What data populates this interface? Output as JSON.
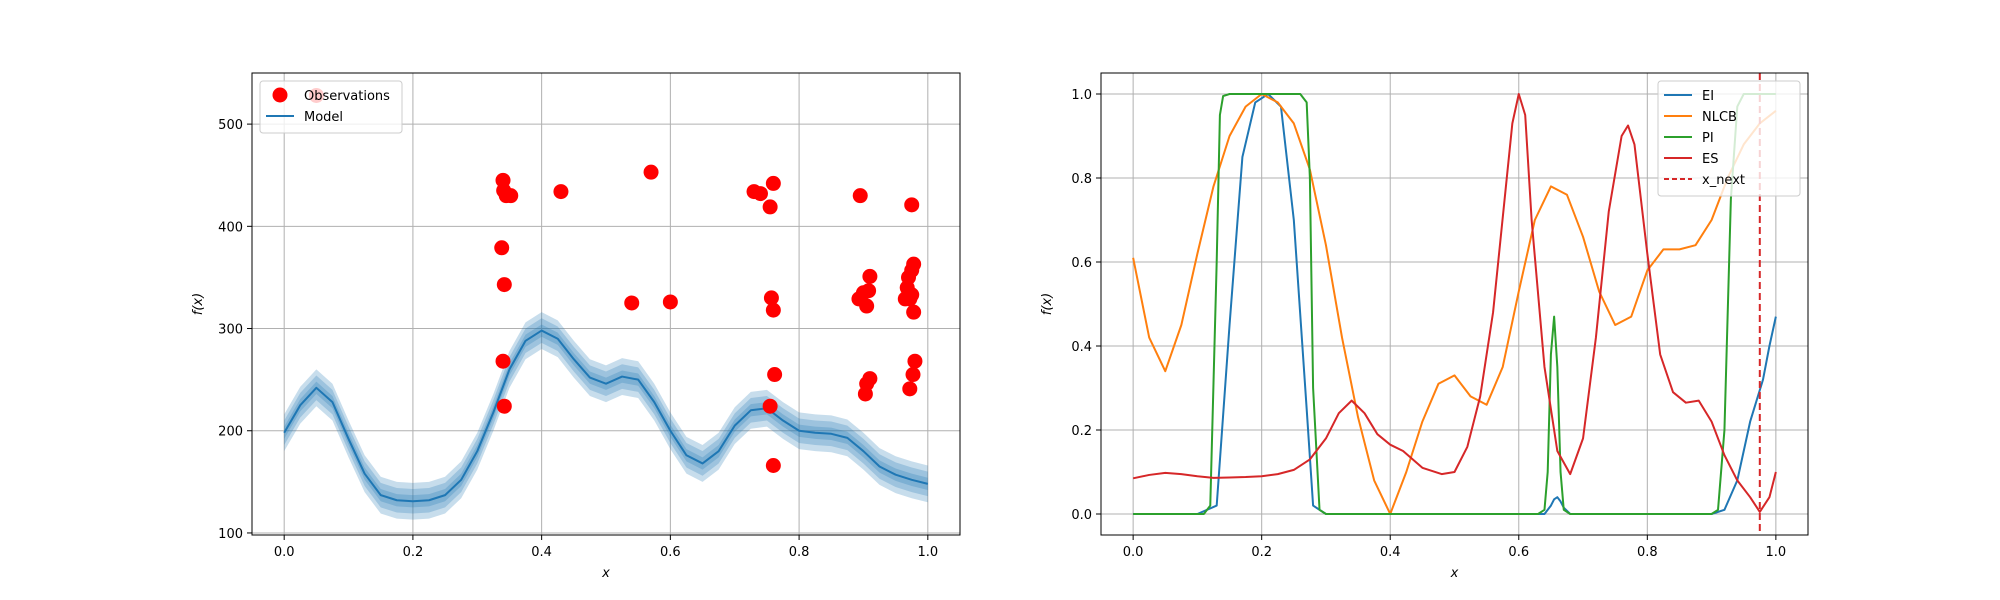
{
  "chart_data": [
    {
      "type": "scatter",
      "xlabel": "x",
      "ylabel": "f(x)",
      "xlim": [
        -0.05,
        1.05
      ],
      "ylim": [
        98,
        550
      ],
      "xticks": [
        0.0,
        0.2,
        0.4,
        0.6,
        0.8,
        1.0
      ],
      "xtick_labels": [
        "0.0",
        "0.2",
        "0.4",
        "0.6",
        "0.8",
        "1.0"
      ],
      "yticks": [
        100,
        200,
        300,
        400,
        500
      ],
      "ytick_labels": [
        "100",
        "200",
        "300",
        "400",
        "500"
      ],
      "grid": true,
      "legend_position": "top-left",
      "series": [
        {
          "name": "Observations",
          "kind": "scatter",
          "color": "#ff0000",
          "x": [
            0.05,
            0.34,
            0.341,
            0.345,
            0.352,
            0.338,
            0.342,
            0.34,
            0.342,
            0.43,
            0.54,
            0.57,
            0.6,
            0.73,
            0.74,
            0.755,
            0.76,
            0.757,
            0.76,
            0.762,
            0.755,
            0.76,
            0.895,
            0.893,
            0.9,
            0.905,
            0.908,
            0.91,
            0.905,
            0.91,
            0.903,
            0.975,
            0.978,
            0.97,
            0.975,
            0.968,
            0.972,
            0.975,
            0.978,
            0.98,
            0.977,
            0.972,
            0.965
          ],
          "y": [
            528,
            445,
            435,
            430,
            430,
            379,
            343,
            268,
            224,
            434,
            325,
            453,
            326,
            434,
            432,
            419,
            442,
            330,
            318,
            255,
            224,
            166,
            430,
            329,
            335,
            322,
            337,
            351,
            246,
            251,
            236,
            421,
            363,
            350,
            357,
            340,
            329,
            333,
            316,
            268,
            255,
            241,
            329
          ]
        },
        {
          "name": "Model",
          "kind": "line",
          "color": "#1f77b4",
          "band_color": "#1f77b4",
          "x": [
            0,
            0.025,
            0.05,
            0.075,
            0.1,
            0.125,
            0.15,
            0.175,
            0.2,
            0.225,
            0.25,
            0.275,
            0.3,
            0.325,
            0.35,
            0.375,
            0.4,
            0.425,
            0.45,
            0.475,
            0.5,
            0.525,
            0.55,
            0.575,
            0.6,
            0.625,
            0.65,
            0.675,
            0.7,
            0.725,
            0.75,
            0.775,
            0.8,
            0.825,
            0.85,
            0.875,
            0.9,
            0.925,
            0.95,
            0.975,
            1.0
          ],
          "y": [
            198,
            225,
            242,
            228,
            192,
            158,
            137,
            132,
            131,
            132,
            137,
            152,
            180,
            218,
            260,
            288,
            298,
            290,
            270,
            252,
            246,
            253,
            250,
            228,
            200,
            176,
            168,
            180,
            205,
            220,
            222,
            210,
            200,
            198,
            197,
            193,
            180,
            165,
            157,
            152,
            148
          ],
          "band_sigma": [
            6,
            6,
            6,
            6,
            6,
            6,
            6,
            6,
            6,
            6,
            6,
            6,
            6,
            6,
            6,
            6,
            6,
            6,
            6,
            6,
            6,
            6,
            6,
            6,
            6,
            6,
            6,
            6,
            6,
            6,
            6,
            6,
            6,
            6,
            6,
            6,
            6,
            6,
            6,
            6,
            6
          ]
        }
      ]
    },
    {
      "type": "line",
      "xlabel": "x",
      "ylabel": "f(x)",
      "xlim": [
        -0.05,
        1.05
      ],
      "ylim": [
        -0.05,
        1.05
      ],
      "xticks": [
        0.0,
        0.2,
        0.4,
        0.6,
        0.8,
        1.0
      ],
      "xtick_labels": [
        "0.0",
        "0.2",
        "0.4",
        "0.6",
        "0.8",
        "1.0"
      ],
      "yticks": [
        0.0,
        0.2,
        0.4,
        0.6,
        0.8,
        1.0
      ],
      "ytick_labels": [
        "0.0",
        "0.2",
        "0.4",
        "0.6",
        "0.8",
        "1.0"
      ],
      "grid": true,
      "legend_position": "top-right",
      "series": [
        {
          "name": "EI",
          "color": "#1f77b4",
          "x": [
            0,
            0.1,
            0.13,
            0.15,
            0.17,
            0.19,
            0.21,
            0.23,
            0.25,
            0.27,
            0.28,
            0.3,
            0.4,
            0.5,
            0.64,
            0.65,
            0.655,
            0.66,
            0.665,
            0.67,
            0.68,
            0.8,
            0.9,
            0.92,
            0.94,
            0.95,
            0.96,
            0.97,
            0.98,
            0.99,
            1.0
          ],
          "y": [
            0,
            0,
            0.02,
            0.45,
            0.85,
            0.98,
            1.0,
            0.97,
            0.7,
            0.25,
            0.02,
            0,
            0,
            0,
            0,
            0.02,
            0.035,
            0.04,
            0.03,
            0.015,
            0,
            0,
            0,
            0.01,
            0.08,
            0.15,
            0.22,
            0.27,
            0.32,
            0.4,
            0.47
          ]
        },
        {
          "name": "NLCB",
          "color": "#ff7f0e",
          "x": [
            0,
            0.025,
            0.05,
            0.075,
            0.1,
            0.125,
            0.15,
            0.175,
            0.2,
            0.225,
            0.25,
            0.275,
            0.3,
            0.325,
            0.35,
            0.375,
            0.4,
            0.425,
            0.45,
            0.475,
            0.5,
            0.525,
            0.55,
            0.575,
            0.6,
            0.625,
            0.65,
            0.675,
            0.7,
            0.725,
            0.75,
            0.775,
            0.8,
            0.825,
            0.85,
            0.875,
            0.9,
            0.925,
            0.95,
            0.975,
            1.0
          ],
          "y": [
            0.61,
            0.42,
            0.34,
            0.45,
            0.62,
            0.78,
            0.9,
            0.97,
            1.0,
            0.98,
            0.93,
            0.82,
            0.64,
            0.42,
            0.23,
            0.08,
            0.0,
            0.1,
            0.22,
            0.31,
            0.33,
            0.28,
            0.26,
            0.35,
            0.53,
            0.7,
            0.78,
            0.76,
            0.66,
            0.53,
            0.45,
            0.47,
            0.58,
            0.63,
            0.63,
            0.64,
            0.7,
            0.8,
            0.88,
            0.93,
            0.96
          ]
        },
        {
          "name": "PI",
          "color": "#2ca02c",
          "x": [
            0,
            0.11,
            0.12,
            0.13,
            0.135,
            0.14,
            0.15,
            0.2,
            0.26,
            0.27,
            0.275,
            0.28,
            0.29,
            0.3,
            0.4,
            0.5,
            0.63,
            0.64,
            0.645,
            0.65,
            0.655,
            0.66,
            0.665,
            0.67,
            0.68,
            0.8,
            0.9,
            0.91,
            0.92,
            0.93,
            0.94,
            0.95,
            0.96,
            0.97,
            1.0
          ],
          "y": [
            0,
            0,
            0.02,
            0.6,
            0.95,
            0.995,
            1.0,
            1.0,
            1.0,
            0.98,
            0.8,
            0.3,
            0.01,
            0,
            0,
            0,
            0,
            0.01,
            0.1,
            0.38,
            0.47,
            0.35,
            0.1,
            0.01,
            0,
            0,
            0,
            0.01,
            0.2,
            0.75,
            0.97,
            1.0,
            1.0,
            1.0,
            1.0
          ]
        },
        {
          "name": "ES",
          "color": "#d62728",
          "x": [
            0,
            0.025,
            0.05,
            0.075,
            0.1,
            0.125,
            0.15,
            0.175,
            0.2,
            0.225,
            0.25,
            0.275,
            0.3,
            0.32,
            0.34,
            0.36,
            0.38,
            0.4,
            0.42,
            0.45,
            0.48,
            0.5,
            0.52,
            0.54,
            0.56,
            0.58,
            0.59,
            0.6,
            0.61,
            0.62,
            0.64,
            0.66,
            0.68,
            0.7,
            0.72,
            0.74,
            0.76,
            0.77,
            0.78,
            0.8,
            0.82,
            0.84,
            0.86,
            0.88,
            0.9,
            0.92,
            0.94,
            0.96,
            0.975,
            0.99,
            1.0
          ],
          "y": [
            0.085,
            0.093,
            0.098,
            0.095,
            0.09,
            0.086,
            0.087,
            0.088,
            0.09,
            0.095,
            0.105,
            0.13,
            0.18,
            0.24,
            0.27,
            0.24,
            0.19,
            0.165,
            0.15,
            0.11,
            0.095,
            0.1,
            0.16,
            0.28,
            0.48,
            0.78,
            0.93,
            1.0,
            0.95,
            0.7,
            0.35,
            0.15,
            0.095,
            0.18,
            0.42,
            0.72,
            0.9,
            0.925,
            0.88,
            0.62,
            0.38,
            0.29,
            0.265,
            0.27,
            0.22,
            0.14,
            0.08,
            0.04,
            0.005,
            0.04,
            0.1
          ]
        },
        {
          "name": "x_next",
          "kind": "vline",
          "color": "#d62728",
          "dashed": true,
          "x_value": 0.975
        }
      ]
    }
  ]
}
